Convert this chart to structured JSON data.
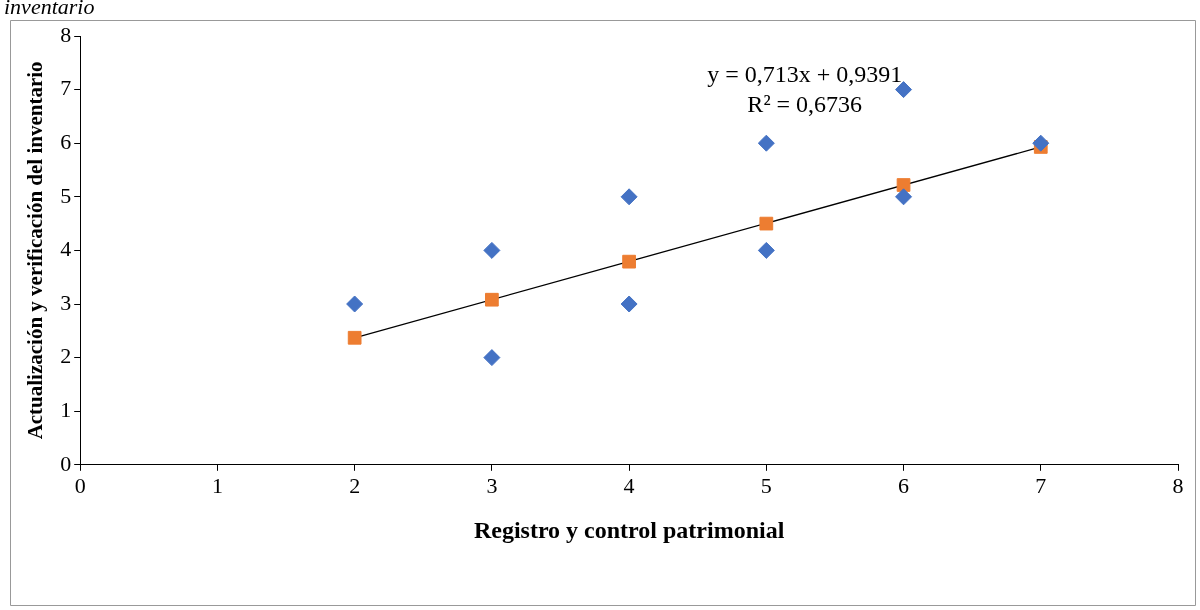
{
  "chart_data": {
    "type": "scatter",
    "xlabel": "Registro y control patrimonial",
    "ylabel": "Actualización y verificación del inventario",
    "annotations": [
      "inventario",
      "y = 0,713x + 0,9391",
      "R² = 0,6736"
    ],
    "xlim": [
      0,
      8
    ],
    "xticks": [
      0,
      1,
      2,
      3,
      4,
      5,
      6,
      7,
      8
    ],
    "ylim": [
      0,
      8
    ],
    "yticks": [
      0,
      1,
      2,
      3,
      4,
      5,
      6,
      7,
      8
    ],
    "grid": false,
    "legend": false,
    "series": [
      {
        "marker": "diamond",
        "color": "#4472c4",
        "x": [
          2,
          3,
          3,
          4,
          4,
          5,
          5,
          6,
          6,
          7
        ],
        "values": [
          3,
          4,
          2,
          5,
          3,
          6,
          4,
          7,
          5,
          6
        ]
      },
      {
        "marker": "square",
        "color": "#ed7d31",
        "x": [
          2,
          3,
          4,
          5,
          6,
          7
        ],
        "values": [
          2.37,
          3.08,
          3.79,
          4.5,
          5.22,
          5.93
        ]
      },
      {
        "type": "line",
        "marker": "none",
        "color": "#000000",
        "x": [
          2,
          7
        ],
        "values": [
          2.37,
          5.93
        ]
      }
    ]
  }
}
